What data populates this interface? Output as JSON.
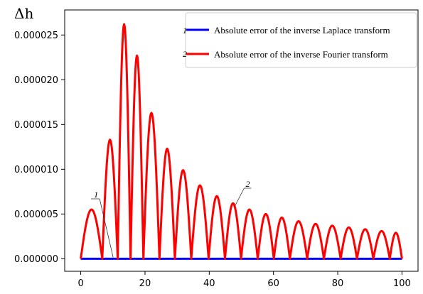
{
  "chart_data": {
    "type": "line",
    "title": "",
    "xlabel": "",
    "ylabel": "Δh",
    "xlim": [
      -5,
      105
    ],
    "ylim": [
      -1.4e-06,
      2.78e-05
    ],
    "xticks": [
      0,
      20,
      40,
      60,
      80,
      100
    ],
    "xtick_labels": [
      "0",
      "20",
      "40",
      "60",
      "80",
      "100"
    ],
    "yticks": [
      0,
      5e-06,
      1e-05,
      1.5e-05,
      2e-05,
      2.5e-05
    ],
    "ytick_labels": [
      "0.000000",
      "0.000005",
      "0.000010",
      "0.000015",
      "0.000020",
      "0.000025"
    ],
    "grid": false,
    "legend_position": "top-right",
    "legend": [
      {
        "number": "1",
        "label": "Absolute error of the inverse Laplace transform",
        "color": "#0000ff"
      },
      {
        "number": "2",
        "label": "Absolute error of the inverse Fourier transform",
        "color": "#ff0000"
      }
    ],
    "series": [
      {
        "name": "Absolute error of the inverse Laplace transform",
        "color": "#0000ff",
        "x": [
          0,
          100
        ],
        "y": [
          0,
          0
        ]
      },
      {
        "name": "Absolute error of the inverse Fourier transform",
        "color": "#ff0000",
        "x": [
          0,
          4.3,
          6.7,
          9.5,
          11.5,
          13.8,
          15.5,
          17.3,
          19.5,
          22,
          24.5,
          26.8,
          29.3,
          31.9,
          34.4,
          37.2,
          39.8,
          42.3,
          44.9,
          47.4,
          49.9,
          52.5,
          55.1,
          57.5,
          60.1,
          62.6,
          65.1,
          67.8,
          70.5,
          73.2,
          75.7,
          78.2,
          80.9,
          83.3,
          86.0,
          88.5,
          91.1,
          93.6,
          96.2,
          98.8,
          100
        ],
        "y": [
          0,
          5.5e-06,
          0,
          1.33e-05,
          0,
          2.62e-05,
          0,
          2.27e-05,
          0,
          1.63e-05,
          0,
          1.23e-05,
          0,
          9.9e-06,
          0,
          8.2e-06,
          0,
          7e-06,
          0,
          6.2e-06,
          0,
          5.5e-06,
          0,
          5e-06,
          0,
          4.6e-06,
          0,
          4.2e-06,
          0,
          3.9e-06,
          0,
          3.7e-06,
          0,
          3.5e-06,
          0,
          3.3e-06,
          0,
          3.1e-06,
          0,
          2.9e-06,
          2.8e-06
        ]
      }
    ],
    "annotations": [
      {
        "text": "1",
        "target_series": 0,
        "x": 10.3,
        "y": 0
      },
      {
        "text": "2",
        "target_series": 1,
        "x": 48,
        "y": 5.9e-06
      }
    ]
  }
}
